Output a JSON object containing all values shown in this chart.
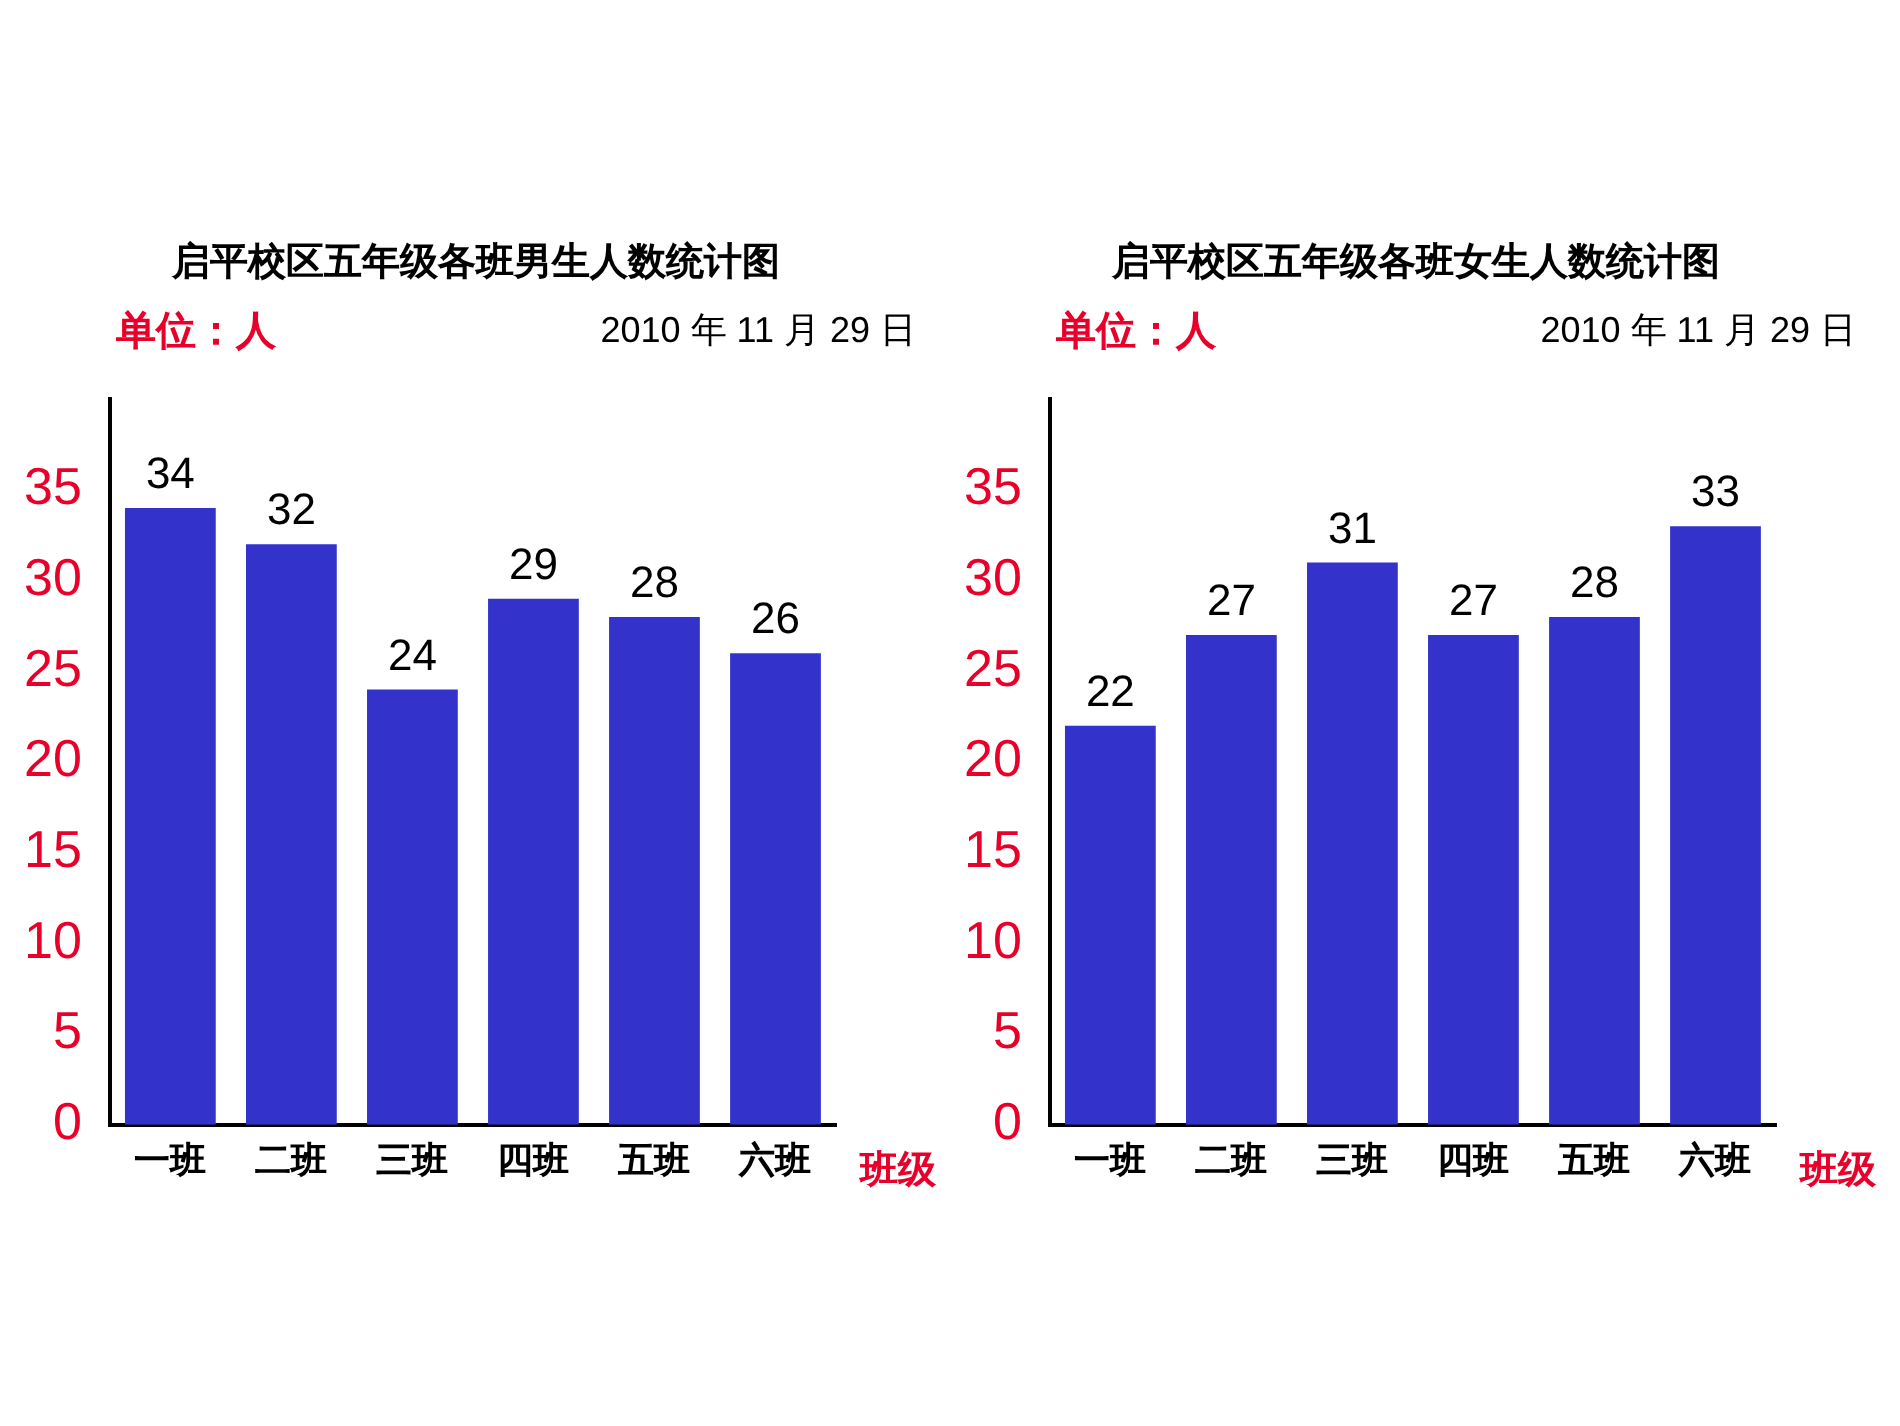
{
  "chart_data": [
    {
      "type": "bar",
      "title": "启平校区五年级各班男生人数统计图",
      "ylabel": "单位：人",
      "xlabel": "班级",
      "annotations": [
        "2010 年 11 月 29 日"
      ],
      "categories": [
        "一班",
        "二班",
        "三班",
        "四班",
        "五班",
        "六班"
      ],
      "values": [
        34,
        32,
        24,
        29,
        28,
        26
      ],
      "color": "#3333cc",
      "ylim": [
        0,
        40
      ],
      "yticks": [
        0,
        5,
        10,
        15,
        20,
        25,
        30,
        35
      ],
      "data_labels": true,
      "grid": false,
      "legend": false
    },
    {
      "type": "bar",
      "title": "启平校区五年级各班女生人数统计图",
      "ylabel": "单位：人",
      "xlabel": "班级",
      "annotations": [
        "2010 年 11 月 29 日"
      ],
      "categories": [
        "一班",
        "二班",
        "三班",
        "四班",
        "五班",
        "六班"
      ],
      "values": [
        22,
        27,
        31,
        27,
        28,
        33
      ],
      "color": "#3333cc",
      "ylim": [
        0,
        40
      ],
      "yticks": [
        0,
        5,
        10,
        15,
        20,
        25,
        30,
        35
      ],
      "data_labels": true,
      "grid": false,
      "legend": false
    }
  ]
}
